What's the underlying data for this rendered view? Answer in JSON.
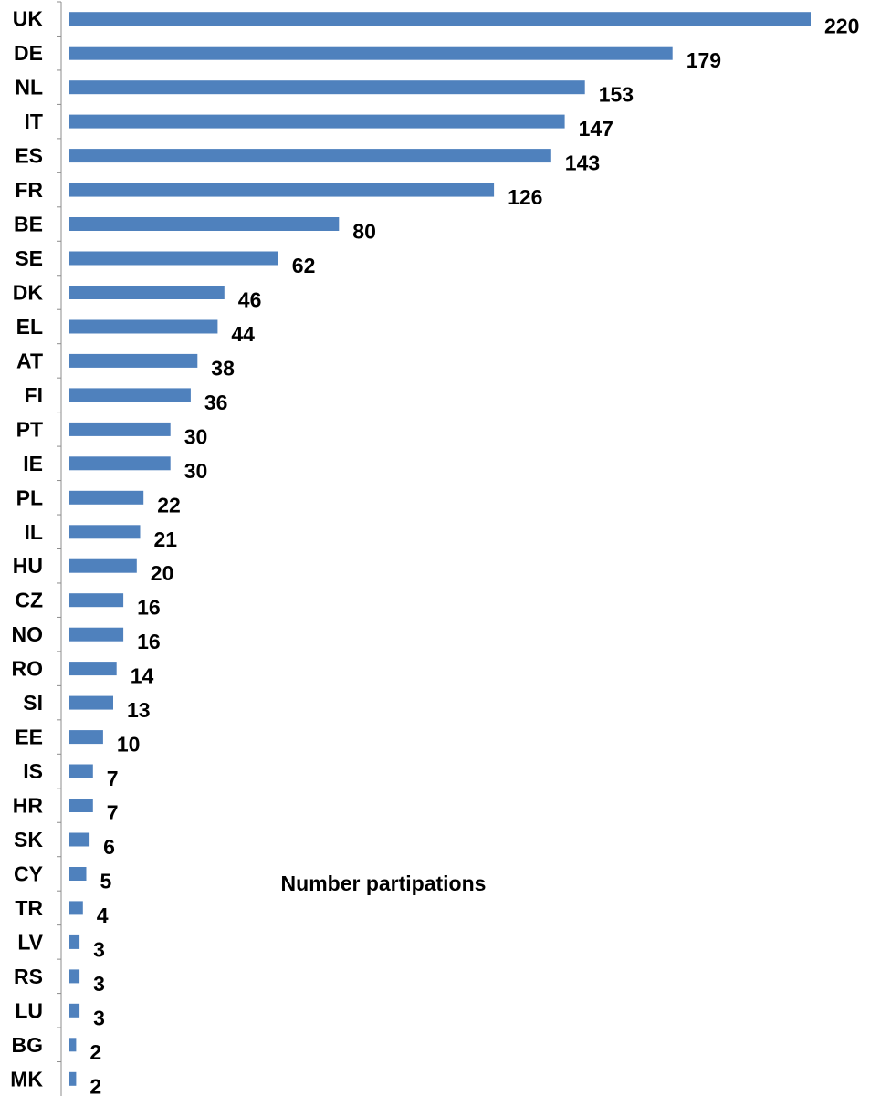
{
  "chart_data": {
    "type": "bar",
    "orientation": "horizontal",
    "categories": [
      "UK",
      "DE",
      "NL",
      "IT",
      "ES",
      "FR",
      "BE",
      "SE",
      "DK",
      "EL",
      "AT",
      "FI",
      "PT",
      "IE",
      "PL",
      "IL",
      "HU",
      "CZ",
      "NO",
      "RO",
      "SI",
      "EE",
      "IS",
      "HR",
      "SK",
      "CY",
      "TR",
      "LV",
      "RS",
      "LU",
      "BG",
      "MK"
    ],
    "values": [
      220,
      179,
      153,
      147,
      143,
      126,
      80,
      62,
      46,
      44,
      38,
      36,
      30,
      30,
      22,
      21,
      20,
      16,
      16,
      14,
      13,
      10,
      7,
      7,
      6,
      5,
      4,
      3,
      3,
      3,
      2,
      2
    ],
    "annotation": "Number partipations",
    "bar_color": "#4F81BD",
    "xlim": [
      0,
      220
    ],
    "grid": false,
    "legend": "none"
  }
}
